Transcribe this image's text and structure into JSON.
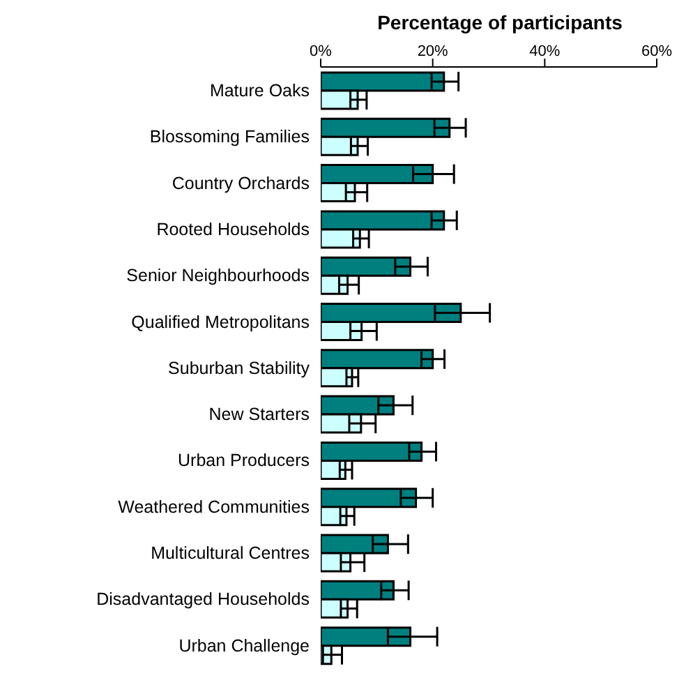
{
  "chart_data": {
    "type": "bar",
    "orientation": "horizontal",
    "xlabel": "Percentage of participants",
    "categories": [
      "Mature Oaks",
      "Blossoming Families",
      "Country Orchards",
      "Rooted Households",
      "Senior Neighbourhoods",
      "Qualified Metropolitans",
      "Suburban Stability",
      "New Starters",
      "Urban Producers",
      "Weathered Communities",
      "Multicultural Centres",
      "Disadvantaged Households",
      "Urban Challenge"
    ],
    "series": [
      {
        "color": "#007f7f",
        "values": [
          22,
          23,
          20,
          22,
          16,
          25,
          20,
          13,
          18,
          17,
          12,
          13,
          16
        ],
        "errors": [
          [
            19.8,
            24.6
          ],
          [
            20.3,
            25.9
          ],
          [
            16.5,
            23.8
          ],
          [
            19.8,
            24.3
          ],
          [
            13.3,
            19.1
          ],
          [
            20.4,
            30.2
          ],
          [
            18,
            22.1
          ],
          [
            10.3,
            16.4
          ],
          [
            15.8,
            20.6
          ],
          [
            14.3,
            20
          ],
          [
            9.3,
            15.6
          ],
          [
            10.8,
            15.7
          ],
          [
            12,
            20.8
          ]
        ]
      },
      {
        "color": "#ccffff",
        "values": [
          6.6,
          6.6,
          6.1,
          7,
          4.8,
          7.3,
          5.6,
          7.2,
          4.4,
          4.6,
          5.3,
          4.8,
          1.9
        ],
        "errors": [
          [
            5.3,
            8.2
          ],
          [
            5.4,
            8.4
          ],
          [
            4.5,
            8.3
          ],
          [
            5.8,
            8.6
          ],
          [
            3.3,
            6.8
          ],
          [
            5.3,
            10
          ],
          [
            4.6,
            6.7
          ],
          [
            5.1,
            9.8
          ],
          [
            3.4,
            5.6
          ],
          [
            3.5,
            6
          ],
          [
            3.6,
            7.8
          ],
          [
            3.6,
            6.5
          ],
          [
            0.4,
            3.8
          ]
        ]
      }
    ],
    "xlim": [
      0,
      60
    ],
    "xticks": [
      {
        "value": 0,
        "label": "0%"
      },
      {
        "value": 20,
        "label": "20%"
      },
      {
        "value": 40,
        "label": "40%"
      },
      {
        "value": 60,
        "label": "60%"
      }
    ],
    "grid": false,
    "legend": false
  }
}
